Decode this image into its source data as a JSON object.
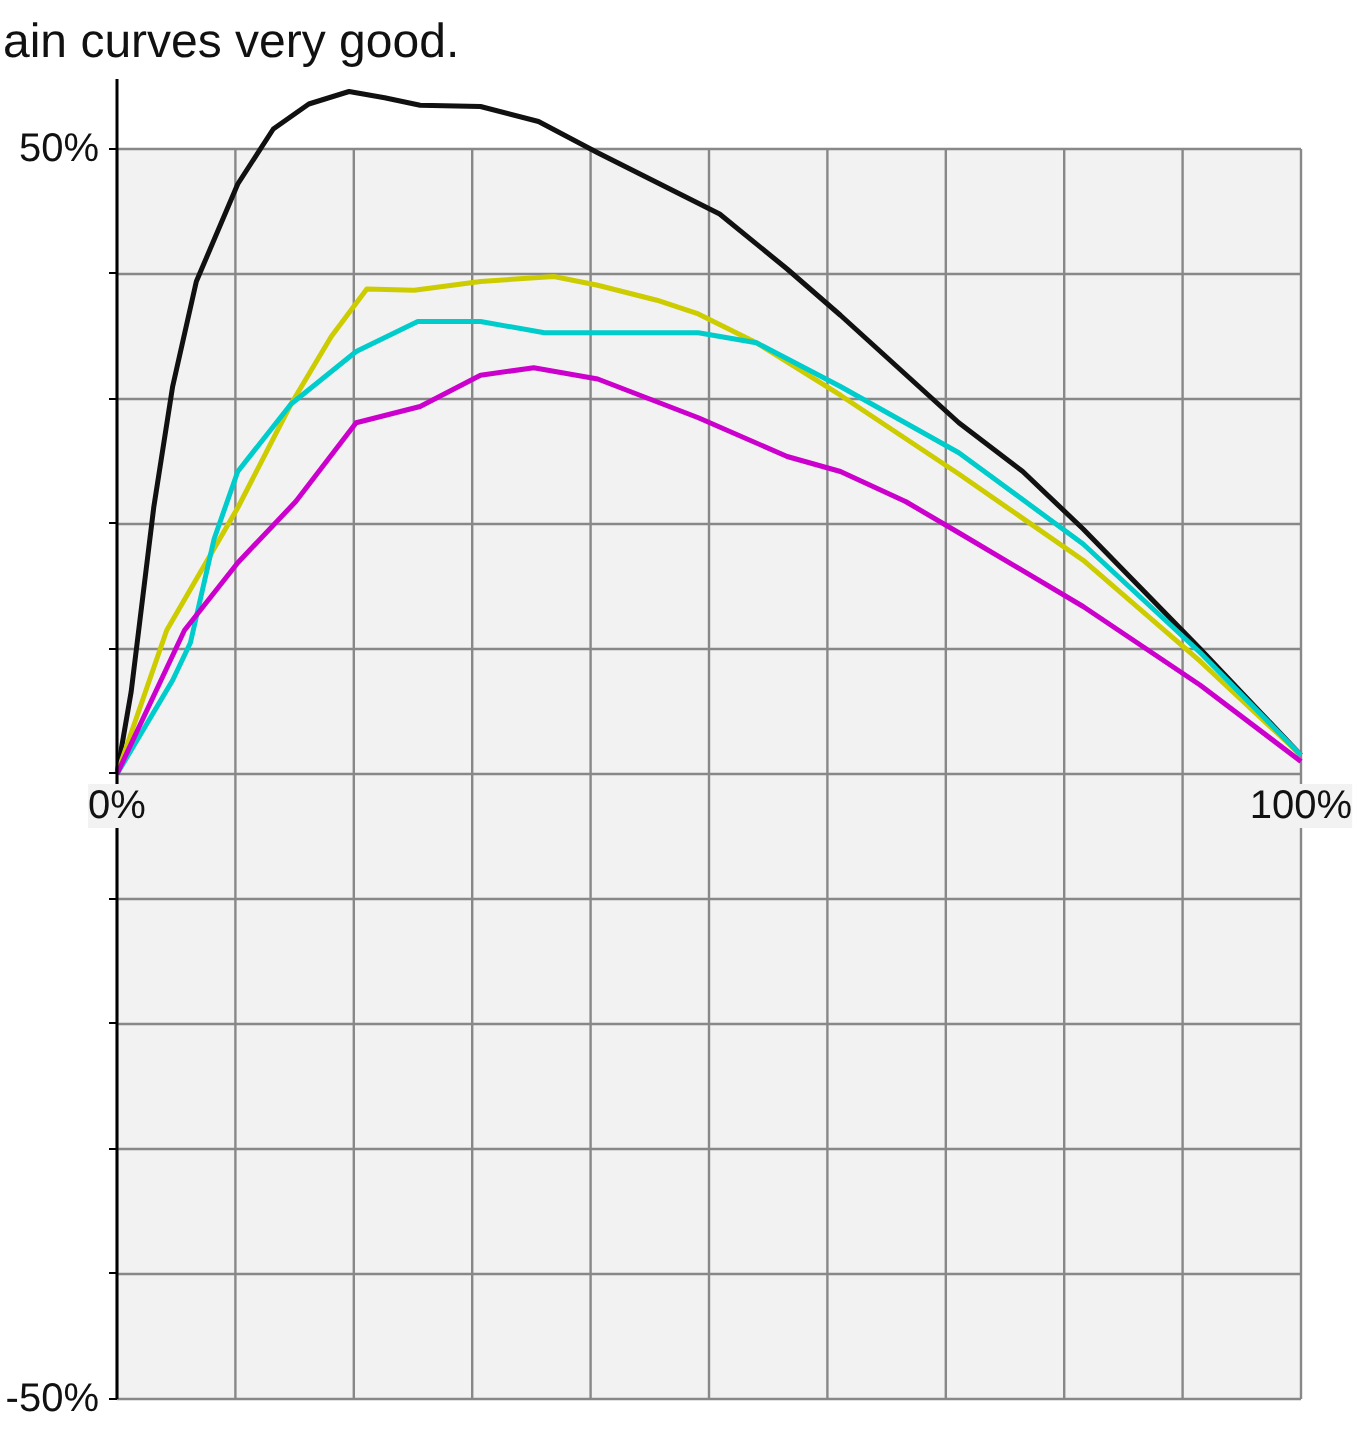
{
  "chart_data": {
    "type": "line",
    "title": "ain curves very good.",
    "xlim": [
      0,
      100
    ],
    "ylim": [
      -50,
      55.6
    ],
    "xticks": [
      {
        "value": 0,
        "label": "0%"
      },
      {
        "value": 10,
        "label": null
      },
      {
        "value": 20,
        "label": null
      },
      {
        "value": 30,
        "label": null
      },
      {
        "value": 40,
        "label": null
      },
      {
        "value": 50,
        "label": null
      },
      {
        "value": 60,
        "label": null
      },
      {
        "value": 70,
        "label": null
      },
      {
        "value": 80,
        "label": null
      },
      {
        "value": 90,
        "label": null
      },
      {
        "value": 100,
        "label": "100%"
      }
    ],
    "yticks": [
      {
        "value": -50,
        "label": "-50%"
      },
      {
        "value": -40,
        "label": null
      },
      {
        "value": -30,
        "label": null
      },
      {
        "value": -20,
        "label": null
      },
      {
        "value": -10,
        "label": null
      },
      {
        "value": 0,
        "label": null
      },
      {
        "value": 10,
        "label": null
      },
      {
        "value": 20,
        "label": null
      },
      {
        "value": 30,
        "label": null
      },
      {
        "value": 40,
        "label": null
      },
      {
        "value": 50,
        "label": "50%"
      }
    ],
    "grid": true,
    "line_style": "solid",
    "series": [
      {
        "color": "#111111",
        "x": [
          0,
          1.2,
          3.1,
          4.7,
          6.7,
          10.2,
          13.2,
          16.2,
          19.6,
          22.6,
          25.6,
          30.7,
          35.6,
          40.6,
          50.9,
          56.6,
          61.1,
          71.1,
          76.5,
          81.6,
          91.5,
          100
        ],
        "values": [
          0,
          6.6,
          21.3,
          31.0,
          39.4,
          47.2,
          51.6,
          53.6,
          54.6,
          54.1,
          53.5,
          53.4,
          52.2,
          49.7,
          44.8,
          40.4,
          36.7,
          28.1,
          24.2,
          19.6,
          10.0,
          1.5
        ]
      },
      {
        "color": "#cccc00",
        "x": [
          0,
          4.2,
          10.2,
          14.7,
          18.1,
          21.1,
          25.1,
          30.7,
          36.9,
          40.6,
          45.6,
          49.1,
          54.0,
          61.1,
          71.1,
          81.6,
          91.5,
          100
        ],
        "values": [
          0,
          11.5,
          21.3,
          29.6,
          35.0,
          38.8,
          38.7,
          39.4,
          39.8,
          39.1,
          37.9,
          36.8,
          34.5,
          30.3,
          24.0,
          17.1,
          9.0,
          1.5
        ]
      },
      {
        "color": "#00cccc",
        "x": [
          0,
          4.7,
          6.2,
          8.2,
          10.2,
          14.7,
          20.2,
          25.4,
          30.7,
          36.1,
          43.1,
          49.1,
          54.0,
          61.1,
          71.1,
          81.6,
          91.5,
          100
        ],
        "values": [
          0,
          7.5,
          10.5,
          18.8,
          24.2,
          29.6,
          33.8,
          36.2,
          36.2,
          35.3,
          35.3,
          35.3,
          34.5,
          31.0,
          25.7,
          18.4,
          9.7,
          1.5
        ]
      },
      {
        "color": "#cc00cc",
        "x": [
          0,
          5.7,
          10.2,
          15.1,
          20.2,
          25.6,
          30.7,
          35.2,
          40.6,
          49.1,
          56.6,
          61.1,
          66.6,
          71.1,
          81.6,
          91.5,
          100
        ],
        "values": [
          0,
          11.5,
          16.9,
          21.8,
          28.1,
          29.4,
          31.9,
          32.5,
          31.6,
          28.5,
          25.4,
          24.2,
          21.8,
          19.3,
          13.4,
          7.1,
          1.0
        ]
      }
    ]
  }
}
